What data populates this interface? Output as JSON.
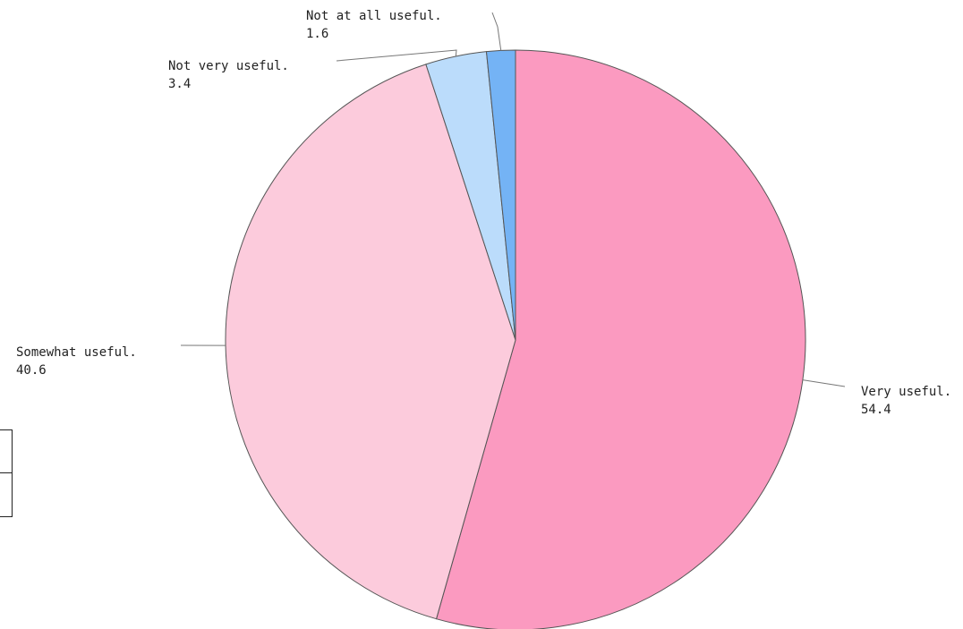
{
  "chart_data": {
    "type": "pie",
    "title": "",
    "slices": [
      {
        "label": "Very useful.",
        "value": 54.4,
        "display": "54.4",
        "color": "#fb9ac0"
      },
      {
        "label": "Somewhat useful.",
        "value": 40.6,
        "display": "40.6",
        "color": "#fccbdc"
      },
      {
        "label": "Not very useful.",
        "value": 3.4,
        "display": "3.4",
        "color": "#bbdcfb"
      },
      {
        "label": "Not at all useful.",
        "value": 1.6,
        "display": "1.6",
        "color": "#74b3f5"
      }
    ],
    "start_angle": "12 o'clock",
    "direction": "clockwise",
    "legend": "none",
    "edge_color": "#555555"
  }
}
